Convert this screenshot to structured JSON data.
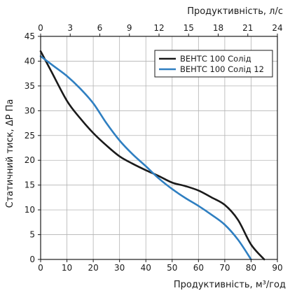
{
  "chart_data": {
    "type": "line",
    "xlabel": "Продуктивність, м³/год",
    "ylabel": "Статичний тиск, ΔР Па",
    "x2label": "Продуктивність, л/с",
    "xlim": [
      0,
      90
    ],
    "ylim": [
      0,
      45
    ],
    "x2lim": [
      0,
      24
    ],
    "x_ticks": [
      "0",
      "10",
      "20",
      "30",
      "40",
      "50",
      "60",
      "70",
      "80",
      "90"
    ],
    "y_ticks": [
      "0",
      "5",
      "10",
      "15",
      "20",
      "25",
      "30",
      "35",
      "40",
      "45"
    ],
    "x2_ticks": [
      "0",
      "3",
      "6",
      "9",
      "12",
      "15",
      "18",
      "21",
      "24"
    ],
    "grid": true,
    "legend_position": "top-right",
    "series": [
      {
        "name": "ВЕНТС 100 Солід",
        "color": "#1a1a1a",
        "points": [
          [
            0,
            42
          ],
          [
            4,
            38
          ],
          [
            10,
            32
          ],
          [
            15,
            28.5
          ],
          [
            20,
            25.5
          ],
          [
            25,
            23
          ],
          [
            30,
            20.8
          ],
          [
            35,
            19.3
          ],
          [
            40,
            18
          ],
          [
            45,
            16.8
          ],
          [
            50,
            15.5
          ],
          [
            55,
            14.8
          ],
          [
            60,
            13.9
          ],
          [
            65,
            12.5
          ],
          [
            70,
            11
          ],
          [
            75,
            8
          ],
          [
            80,
            3
          ],
          [
            85,
            0
          ]
        ]
      },
      {
        "name": "ВЕНТС 100 Солід 12",
        "color": "#2f7fc1",
        "points": [
          [
            0,
            41
          ],
          [
            5,
            39
          ],
          [
            10,
            37
          ],
          [
            15,
            34.5
          ],
          [
            20,
            31.5
          ],
          [
            25,
            27.5
          ],
          [
            30,
            24
          ],
          [
            35,
            21.2
          ],
          [
            40,
            18.8
          ],
          [
            45,
            16.3
          ],
          [
            50,
            14.2
          ],
          [
            55,
            12.4
          ],
          [
            60,
            10.8
          ],
          [
            65,
            9
          ],
          [
            70,
            7
          ],
          [
            75,
            4
          ],
          [
            80,
            0
          ]
        ]
      }
    ]
  }
}
